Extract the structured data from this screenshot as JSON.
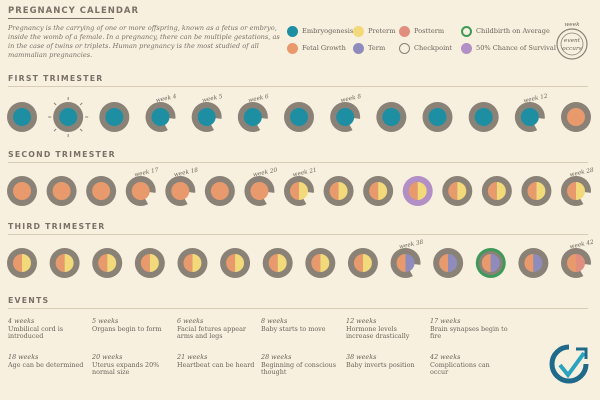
{
  "header": {
    "title": "PREGNANCY CALENDAR",
    "intro": "Pregnancy is the carrying of one or more offspring, known as a fetus or embryo, inside the womb of a female. In a pregnancy, there can be multiple gestations, as in the case of twins or triplets. Human pregnancy is the most studied of all mammalian pregnancies."
  },
  "legend": {
    "items": [
      {
        "label": "Embryogenesis",
        "color": "#1e8fa3",
        "style": "fill"
      },
      {
        "label": "Preterm",
        "color": "#f2d97a",
        "style": "fill"
      },
      {
        "label": "Postterm",
        "color": "#e08f7e",
        "style": "fill"
      },
      {
        "label": "Childbirth on Average",
        "color": "#3f9a5a",
        "style": "ring"
      },
      {
        "label": "Fetal Growth",
        "color": "#e89a6c",
        "style": "fill"
      },
      {
        "label": "Term",
        "color": "#8f8cbd",
        "style": "fill"
      },
      {
        "label": "Checkpoint",
        "color": "#8a8177",
        "style": "outline"
      },
      {
        "label": "50% Chance of Survival",
        "color": "#b28fc4",
        "style": "fill"
      }
    ],
    "key": {
      "top": "week",
      "center": "event",
      "bottom": "occurs"
    }
  },
  "sections": {
    "first": "FIRST TRIMESTER",
    "second": "SECOND TRIMESTER",
    "third": "THIRD TRIMESTER",
    "events": "EVENTS"
  },
  "weeks_first": [
    {
      "label": "",
      "inner": "teal",
      "cut": 0,
      "burst": false
    },
    {
      "label": "",
      "inner": "teal",
      "cut": 0,
      "burst": true
    },
    {
      "label": "",
      "inner": "teal",
      "cut": 0,
      "burst": false
    },
    {
      "label": "week 4",
      "inner": "teal",
      "cut": 1,
      "burst": false
    },
    {
      "label": "week 5",
      "inner": "teal",
      "cut": 1,
      "burst": false
    },
    {
      "label": "week 6",
      "inner": "teal",
      "cut": 1,
      "burst": false
    },
    {
      "label": "",
      "inner": "teal",
      "cut": 0,
      "burst": false
    },
    {
      "label": "week 8",
      "inner": "teal",
      "cut": 1,
      "burst": false
    },
    {
      "label": "",
      "inner": "teal",
      "cut": 0,
      "burst": false
    },
    {
      "label": "",
      "inner": "teal",
      "cut": 0,
      "burst": false
    },
    {
      "label": "",
      "inner": "teal",
      "cut": 0,
      "burst": false
    },
    {
      "label": "week 12",
      "inner": "teal",
      "cut": 1,
      "burst": false
    },
    {
      "label": "",
      "inner": "orange",
      "cut": 0,
      "burst": false
    }
  ],
  "weeks_second": [
    {
      "label": "",
      "inner": "orange",
      "cut": 0
    },
    {
      "label": "",
      "inner": "orange",
      "cut": 0
    },
    {
      "label": "",
      "inner": "orange",
      "cut": 0
    },
    {
      "label": "week 17",
      "inner": "orange",
      "cut": 1
    },
    {
      "label": "week 18",
      "inner": "orange",
      "cut": 1
    },
    {
      "label": "",
      "inner": "orange",
      "cut": 0
    },
    {
      "label": "week 20",
      "inner": "orange",
      "cut": 1
    },
    {
      "label": "week 21",
      "inner": "orangeyellow",
      "cut": 2
    },
    {
      "label": "",
      "inner": "orangeyellow",
      "cut": 0
    },
    {
      "label": "",
      "inner": "orangeyellow",
      "cut": 0
    },
    {
      "label": "",
      "inner": "orangeyellow",
      "cut": 0,
      "ring": "purple"
    },
    {
      "label": "",
      "inner": "orangeyellow",
      "cut": 0
    },
    {
      "label": "",
      "inner": "orangeyellow",
      "cut": 0
    },
    {
      "label": "",
      "inner": "orangeyellow",
      "cut": 0
    },
    {
      "label": "week 28",
      "inner": "orangeyellow",
      "cut": 1
    }
  ],
  "weeks_third": [
    {
      "label": "",
      "inner": "orangeyellow",
      "cut": 0
    },
    {
      "label": "",
      "inner": "orangeyellow",
      "cut": 0
    },
    {
      "label": "",
      "inner": "orangeyellow",
      "cut": 0
    },
    {
      "label": "",
      "inner": "orangeyellow",
      "cut": 0
    },
    {
      "label": "",
      "inner": "orangeyellow",
      "cut": 0
    },
    {
      "label": "",
      "inner": "orangeyellow",
      "cut": 0
    },
    {
      "label": "",
      "inner": "orangeyellow",
      "cut": 0
    },
    {
      "label": "",
      "inner": "orangeyellow",
      "cut": 0
    },
    {
      "label": "",
      "inner": "orangeyellow",
      "cut": 0
    },
    {
      "label": "week 38",
      "inner": "orangepurple",
      "cut": 1
    },
    {
      "label": "",
      "inner": "orangepurple",
      "cut": 0
    },
    {
      "label": "",
      "inner": "orangepurple",
      "cut": 0,
      "ring": "green"
    },
    {
      "label": "",
      "inner": "orangepurple",
      "cut": 0
    },
    {
      "label": "week 42",
      "inner": "orangepink",
      "cut": 1
    }
  ],
  "events": [
    {
      "week": "4 weeks",
      "desc": "Umbilical cord is introduced"
    },
    {
      "week": "5 weeks",
      "desc": "Organs begin to form"
    },
    {
      "week": "6 weeks",
      "desc": "Facial fetures appear arms and legs"
    },
    {
      "week": "8 weeks",
      "desc": "Baby starts to move"
    },
    {
      "week": "12 weeks",
      "desc": "Hormone levels increase drastically"
    },
    {
      "week": "17 weeks",
      "desc": "Brain synapses begin to fire"
    },
    {
      "week": "18 weeks",
      "desc": "Age can be determined"
    },
    {
      "week": "20 weeks",
      "desc": "Uterus expands 20% normal size"
    },
    {
      "week": "21 weeks",
      "desc": "Heartbeat can be heard"
    },
    {
      "week": "28 weeks",
      "desc": "Beginning of conscious thought"
    },
    {
      "week": "38 weeks",
      "desc": "Baby inverts position"
    },
    {
      "week": "42 weeks",
      "desc": "Complications can occur"
    }
  ],
  "colors": {
    "ring": "#8a8177",
    "teal": "#1e8fa3",
    "orange": "#e89a6c",
    "yellow": "#f2d97a",
    "purple": "#8f8cbd",
    "pink": "#e08f7e",
    "green": "#3f9a5a",
    "lavender": "#b28fc4"
  }
}
